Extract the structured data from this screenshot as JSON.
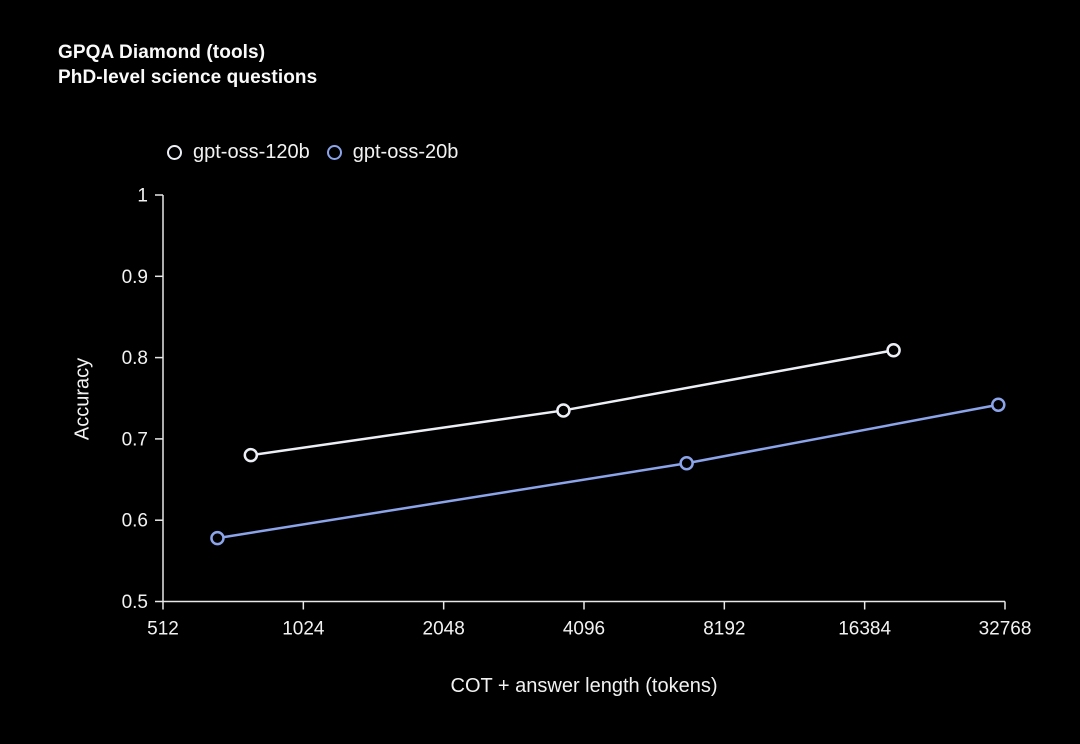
{
  "title": {
    "line1": "GPQA Diamond (tools)",
    "line2": "PhD-level science questions"
  },
  "legend": [
    {
      "label": "gpt-oss-120b",
      "color": "#edeff7"
    },
    {
      "label": "gpt-oss-20b",
      "color": "#8ba4ea"
    }
  ],
  "chart_data": {
    "type": "line",
    "title": "GPQA Diamond (tools)",
    "subtitle": "PhD-level science questions",
    "xlabel": "COT + answer length (tokens)",
    "ylabel": "Accuracy",
    "x_scale": "log2",
    "xlim": [
      512,
      32768
    ],
    "ylim": [
      0.5,
      1
    ],
    "grid": false,
    "legend_position": "top",
    "x_ticks": [
      512,
      1024,
      2048,
      4096,
      8192,
      16384,
      32768
    ],
    "x_tick_labels": [
      "512",
      "1024",
      "2048",
      "4096",
      "8192",
      "16384",
      "32768"
    ],
    "y_ticks": [
      1,
      0.9,
      0.8,
      0.7,
      0.6,
      0.5
    ],
    "y_tick_labels": [
      "1",
      "0.9",
      "0.8",
      "0.7",
      "0.6",
      "0.5"
    ],
    "axis_color": "#e8e8e8",
    "tick_label_color": "#f2f2f2",
    "marker_fill": "#000000",
    "series": [
      {
        "name": "gpt-oss-120b",
        "color": "#edeff7",
        "points": [
          {
            "x": 790,
            "y": 0.68
          },
          {
            "x": 3700,
            "y": 0.735
          },
          {
            "x": 18900,
            "y": 0.809
          }
        ]
      },
      {
        "name": "gpt-oss-20b",
        "color": "#8ba4ea",
        "points": [
          {
            "x": 670,
            "y": 0.578
          },
          {
            "x": 6800,
            "y": 0.67
          },
          {
            "x": 31700,
            "y": 0.742
          }
        ]
      }
    ]
  }
}
